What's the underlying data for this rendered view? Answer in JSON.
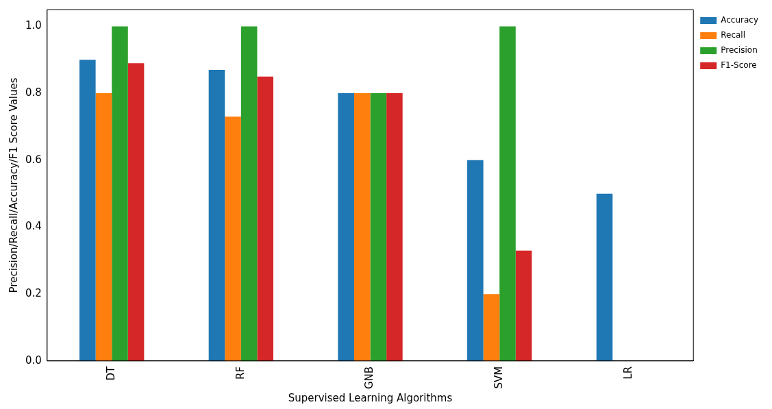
{
  "chart_data": {
    "type": "bar",
    "xlabel": "Supervised Learning Algorithms",
    "ylabel": "Precision/Recall/Accuracy/F1 Score Values",
    "categories": [
      "DT",
      "RF",
      "GNB",
      "SVM",
      "LR"
    ],
    "series": [
      {
        "name": "Accuracy",
        "color": "#1f77b4",
        "values": [
          0.9,
          0.87,
          0.8,
          0.6,
          0.5
        ]
      },
      {
        "name": "Recall",
        "color": "#ff7f0e",
        "values": [
          0.8,
          0.73,
          0.8,
          0.2,
          0
        ]
      },
      {
        "name": "Precision",
        "color": "#2ca02c",
        "values": [
          1.0,
          1.0,
          0.8,
          1.0,
          0
        ]
      },
      {
        "name": "F1-Score",
        "color": "#d62728",
        "values": [
          0.89,
          0.85,
          0.8,
          0.33,
          0
        ]
      }
    ],
    "ylim": [
      0,
      1.05
    ],
    "yticks": [
      {
        "value": 0,
        "label": "0.0"
      },
      {
        "value": 0.2,
        "label": "0.2"
      },
      {
        "value": 0.4,
        "label": "0.4"
      },
      {
        "value": 0.6,
        "label": "0.6"
      },
      {
        "value": 0.8,
        "label": "0.8"
      },
      {
        "value": 1,
        "label": "1.0"
      }
    ],
    "grid": false,
    "legend": "top right"
  }
}
